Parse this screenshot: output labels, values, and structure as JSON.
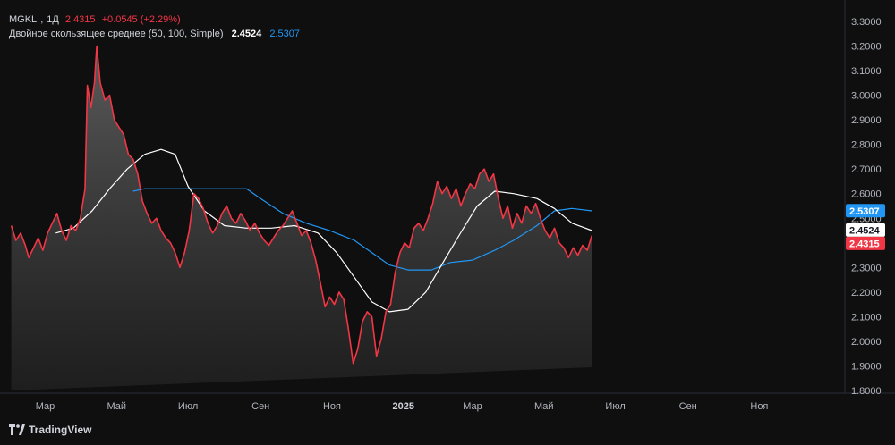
{
  "legend": {
    "symbol": "MGKL",
    "interval": "1Д",
    "price": "2.4315",
    "change": "+0.0545 (+2.29%)",
    "indicator_name": "Двойное скользящее среднее (50, 100, Simple)",
    "indicator_value_1": "2.4524",
    "indicator_value_2": "2.5307"
  },
  "brand": {
    "name": "TradingView"
  },
  "colors": {
    "background": "#0f0f0f",
    "price_line": "#f23645",
    "ma_fast": "#ffffff",
    "ma_slow": "#2196f3",
    "axis_text": "#b2b5be"
  },
  "chart_data": {
    "type": "area",
    "title": "",
    "ylim": [
      1.8,
      3.3
    ],
    "y_ticks": [
      "3.3000",
      "3.2000",
      "3.1000",
      "3.0000",
      "2.9000",
      "2.8000",
      "2.7000",
      "2.6000",
      "2.5000",
      "2.4000",
      "2.3000",
      "2.2000",
      "2.1000",
      "2.0000",
      "1.9000",
      "1.8000"
    ],
    "x_ticks": [
      {
        "label": "Мар",
        "date": "2024-03-01",
        "year": false
      },
      {
        "label": "Май",
        "date": "2024-05-01",
        "year": false
      },
      {
        "label": "Июл",
        "date": "2024-07-01",
        "year": false
      },
      {
        "label": "Сен",
        "date": "2024-09-01",
        "year": false
      },
      {
        "label": "Ноя",
        "date": "2024-11-01",
        "year": false
      },
      {
        "label": "2025",
        "date": "2025-01-01",
        "year": true
      },
      {
        "label": "Мар",
        "date": "2025-03-01",
        "year": false
      },
      {
        "label": "Май",
        "date": "2025-05-01",
        "year": false
      },
      {
        "label": "Июл",
        "date": "2025-07-01",
        "year": false
      },
      {
        "label": "Сен",
        "date": "2025-09-01",
        "year": false
      },
      {
        "label": "Ноя",
        "date": "2025-11-01",
        "year": false
      }
    ],
    "x_range": [
      "2024-01-30",
      "2025-12-15"
    ],
    "grid": false,
    "series": [
      {
        "name": "MGKL",
        "role": "price",
        "points": [
          [
            "2024-02-01",
            2.47
          ],
          [
            "2024-02-05",
            2.41
          ],
          [
            "2024-02-09",
            2.44
          ],
          [
            "2024-02-13",
            2.39
          ],
          [
            "2024-02-16",
            2.34
          ],
          [
            "2024-02-20",
            2.38
          ],
          [
            "2024-02-24",
            2.42
          ],
          [
            "2024-02-28",
            2.37
          ],
          [
            "2024-03-03",
            2.44
          ],
          [
            "2024-03-07",
            2.48
          ],
          [
            "2024-03-11",
            2.52
          ],
          [
            "2024-03-15",
            2.45
          ],
          [
            "2024-03-19",
            2.41
          ],
          [
            "2024-03-23",
            2.47
          ],
          [
            "2024-03-27",
            2.45
          ],
          [
            "2024-03-31",
            2.5
          ],
          [
            "2024-04-04",
            2.62
          ],
          [
            "2024-04-06",
            3.04
          ],
          [
            "2024-04-09",
            2.95
          ],
          [
            "2024-04-12",
            3.05
          ],
          [
            "2024-04-14",
            3.2
          ],
          [
            "2024-04-17",
            3.05
          ],
          [
            "2024-04-21",
            2.98
          ],
          [
            "2024-04-25",
            3.0
          ],
          [
            "2024-04-29",
            2.9
          ],
          [
            "2024-05-03",
            2.87
          ],
          [
            "2024-05-07",
            2.84
          ],
          [
            "2024-05-11",
            2.76
          ],
          [
            "2024-05-15",
            2.74
          ],
          [
            "2024-05-19",
            2.68
          ],
          [
            "2024-05-23",
            2.57
          ],
          [
            "2024-05-27",
            2.52
          ],
          [
            "2024-05-31",
            2.48
          ],
          [
            "2024-06-04",
            2.5
          ],
          [
            "2024-06-08",
            2.45
          ],
          [
            "2024-06-12",
            2.42
          ],
          [
            "2024-06-16",
            2.4
          ],
          [
            "2024-06-20",
            2.36
          ],
          [
            "2024-06-24",
            2.3
          ],
          [
            "2024-06-28",
            2.36
          ],
          [
            "2024-07-02",
            2.45
          ],
          [
            "2024-07-06",
            2.6
          ],
          [
            "2024-07-10",
            2.58
          ],
          [
            "2024-07-14",
            2.54
          ],
          [
            "2024-07-18",
            2.48
          ],
          [
            "2024-07-22",
            2.44
          ],
          [
            "2024-07-26",
            2.47
          ],
          [
            "2024-07-30",
            2.52
          ],
          [
            "2024-08-03",
            2.55
          ],
          [
            "2024-08-07",
            2.5
          ],
          [
            "2024-08-11",
            2.48
          ],
          [
            "2024-08-15",
            2.52
          ],
          [
            "2024-08-19",
            2.49
          ],
          [
            "2024-08-23",
            2.45
          ],
          [
            "2024-08-27",
            2.48
          ],
          [
            "2024-08-31",
            2.44
          ],
          [
            "2024-09-04",
            2.41
          ],
          [
            "2024-09-08",
            2.39
          ],
          [
            "2024-09-12",
            2.42
          ],
          [
            "2024-09-16",
            2.45
          ],
          [
            "2024-09-20",
            2.47
          ],
          [
            "2024-09-24",
            2.5
          ],
          [
            "2024-09-28",
            2.53
          ],
          [
            "2024-10-02",
            2.48
          ],
          [
            "2024-10-06",
            2.43
          ],
          [
            "2024-10-10",
            2.45
          ],
          [
            "2024-10-14",
            2.4
          ],
          [
            "2024-10-18",
            2.33
          ],
          [
            "2024-10-22",
            2.24
          ],
          [
            "2024-10-26",
            2.14
          ],
          [
            "2024-10-30",
            2.18
          ],
          [
            "2024-11-03",
            2.15
          ],
          [
            "2024-11-07",
            2.2
          ],
          [
            "2024-11-11",
            2.17
          ],
          [
            "2024-11-15",
            2.05
          ],
          [
            "2024-11-19",
            1.91
          ],
          [
            "2024-11-23",
            1.97
          ],
          [
            "2024-11-27",
            2.08
          ],
          [
            "2024-12-01",
            2.12
          ],
          [
            "2024-12-05",
            2.1
          ],
          [
            "2024-12-09",
            1.94
          ],
          [
            "2024-12-13",
            2.01
          ],
          [
            "2024-12-17",
            2.12
          ],
          [
            "2024-12-21",
            2.15
          ],
          [
            "2024-12-25",
            2.28
          ],
          [
            "2024-12-29",
            2.36
          ],
          [
            "2025-01-02",
            2.4
          ],
          [
            "2025-01-06",
            2.38
          ],
          [
            "2025-01-10",
            2.46
          ],
          [
            "2025-01-14",
            2.48
          ],
          [
            "2025-01-18",
            2.45
          ],
          [
            "2025-01-22",
            2.5
          ],
          [
            "2025-01-26",
            2.56
          ],
          [
            "2025-01-30",
            2.65
          ],
          [
            "2025-02-03",
            2.6
          ],
          [
            "2025-02-07",
            2.63
          ],
          [
            "2025-02-11",
            2.58
          ],
          [
            "2025-02-15",
            2.62
          ],
          [
            "2025-02-19",
            2.55
          ],
          [
            "2025-02-23",
            2.6
          ],
          [
            "2025-02-27",
            2.64
          ],
          [
            "2025-03-03",
            2.62
          ],
          [
            "2025-03-07",
            2.68
          ],
          [
            "2025-03-11",
            2.7
          ],
          [
            "2025-03-15",
            2.65
          ],
          [
            "2025-03-19",
            2.68
          ],
          [
            "2025-03-23",
            2.58
          ],
          [
            "2025-03-27",
            2.5
          ],
          [
            "2025-03-31",
            2.55
          ],
          [
            "2025-04-04",
            2.46
          ],
          [
            "2025-04-08",
            2.52
          ],
          [
            "2025-04-12",
            2.48
          ],
          [
            "2025-04-16",
            2.55
          ],
          [
            "2025-04-20",
            2.52
          ],
          [
            "2025-04-24",
            2.56
          ],
          [
            "2025-04-28",
            2.5
          ],
          [
            "2025-05-02",
            2.45
          ],
          [
            "2025-05-06",
            2.42
          ],
          [
            "2025-05-10",
            2.46
          ],
          [
            "2025-05-14",
            2.4
          ],
          [
            "2025-05-18",
            2.38
          ],
          [
            "2025-05-22",
            2.34
          ],
          [
            "2025-05-26",
            2.38
          ],
          [
            "2025-05-30",
            2.35
          ],
          [
            "2025-06-03",
            2.39
          ],
          [
            "2025-06-07",
            2.37
          ],
          [
            "2025-06-11",
            2.43
          ]
        ]
      },
      {
        "name": "SMA 50",
        "role": "ma_fast",
        "points": [
          [
            "2024-03-10",
            2.44
          ],
          [
            "2024-03-25",
            2.46
          ],
          [
            "2024-04-10",
            2.53
          ],
          [
            "2024-04-25",
            2.62
          ],
          [
            "2024-05-10",
            2.7
          ],
          [
            "2024-05-25",
            2.76
          ],
          [
            "2024-06-08",
            2.78
          ],
          [
            "2024-06-20",
            2.76
          ],
          [
            "2024-07-01",
            2.63
          ],
          [
            "2024-07-15",
            2.53
          ],
          [
            "2024-08-01",
            2.47
          ],
          [
            "2024-08-20",
            2.46
          ],
          [
            "2024-09-10",
            2.46
          ],
          [
            "2024-09-30",
            2.47
          ],
          [
            "2024-10-20",
            2.44
          ],
          [
            "2024-11-05",
            2.36
          ],
          [
            "2024-11-20",
            2.26
          ],
          [
            "2024-12-05",
            2.16
          ],
          [
            "2024-12-20",
            2.12
          ],
          [
            "2025-01-05",
            2.13
          ],
          [
            "2025-01-20",
            2.2
          ],
          [
            "2025-02-05",
            2.33
          ],
          [
            "2025-02-20",
            2.45
          ],
          [
            "2025-03-05",
            2.55
          ],
          [
            "2025-03-20",
            2.61
          ],
          [
            "2025-04-05",
            2.6
          ],
          [
            "2025-04-25",
            2.58
          ],
          [
            "2025-05-10",
            2.54
          ],
          [
            "2025-05-25",
            2.48
          ],
          [
            "2025-06-11",
            2.45
          ]
        ]
      },
      {
        "name": "SMA 100",
        "role": "ma_slow",
        "points": [
          [
            "2024-05-15",
            2.61
          ],
          [
            "2024-05-25",
            2.62
          ],
          [
            "2024-06-15",
            2.62
          ],
          [
            "2024-07-05",
            2.62
          ],
          [
            "2024-08-01",
            2.62
          ],
          [
            "2024-08-20",
            2.62
          ],
          [
            "2024-09-01",
            2.58
          ],
          [
            "2024-09-20",
            2.52
          ],
          [
            "2024-10-10",
            2.48
          ],
          [
            "2024-10-30",
            2.45
          ],
          [
            "2024-11-20",
            2.41
          ],
          [
            "2024-12-05",
            2.36
          ],
          [
            "2024-12-20",
            2.31
          ],
          [
            "2025-01-05",
            2.29
          ],
          [
            "2025-01-25",
            2.29
          ],
          [
            "2025-02-10",
            2.32
          ],
          [
            "2025-03-01",
            2.33
          ],
          [
            "2025-03-20",
            2.37
          ],
          [
            "2025-04-05",
            2.41
          ],
          [
            "2025-04-25",
            2.47
          ],
          [
            "2025-05-10",
            2.53
          ],
          [
            "2025-05-25",
            2.54
          ],
          [
            "2025-06-11",
            2.53
          ]
        ]
      }
    ],
    "price_labels": [
      {
        "value": "2.5307",
        "y": 2.5307,
        "color": "#2196f3",
        "text_dark": false
      },
      {
        "value": "2.4524",
        "y": 2.4524,
        "color": "#ffffff",
        "text_dark": true
      },
      {
        "value": "2.4315",
        "y": 2.4315,
        "color": "#f23645",
        "text_dark": false
      }
    ]
  }
}
